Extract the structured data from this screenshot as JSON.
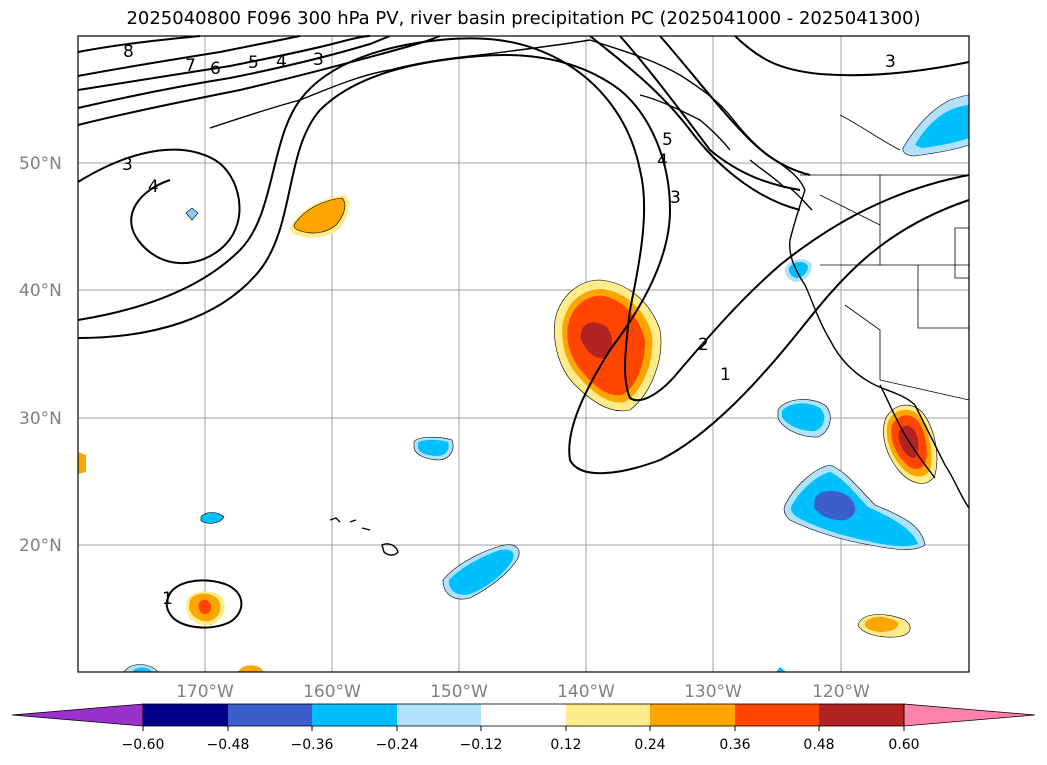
{
  "title": "2025040800 F096 300 hPa PV, river basin precipitation PC (2025041000 - 2025041300)",
  "map": {
    "lat_labels": [
      "50°N",
      "40°N",
      "30°N",
      "20°N"
    ],
    "lon_labels": [
      "170°W",
      "160°W",
      "150°W",
      "140°W",
      "130°W",
      "120°W"
    ],
    "pv_contour_labels": [
      "8",
      "7",
      "6",
      "5",
      "4",
      "3",
      "3",
      "4",
      "3",
      "5",
      "4",
      "3",
      "2",
      "1",
      "1"
    ]
  },
  "colorbar": {
    "ticks": [
      "−0.60",
      "−0.48",
      "−0.36",
      "−0.24",
      "−0.12",
      "0.12",
      "0.24",
      "0.36",
      "0.48",
      "0.60"
    ],
    "colors": [
      "#9932cc",
      "#00008b",
      "#3a5fcd",
      "#00bfff",
      "#b0e2ff",
      "#ffffff",
      "#ffec8b",
      "#ffa500",
      "#ff4500",
      "#b22222",
      "#ff82ab"
    ]
  },
  "shading_colors": {
    "light_yellow": "#ffec8b",
    "orange": "#ffa500",
    "red_orange": "#ff4500",
    "dark_red": "#b22222",
    "light_blue": "#b0e2ff",
    "deep_sky_blue": "#00bfff",
    "royal_blue": "#3a5fcd"
  }
}
